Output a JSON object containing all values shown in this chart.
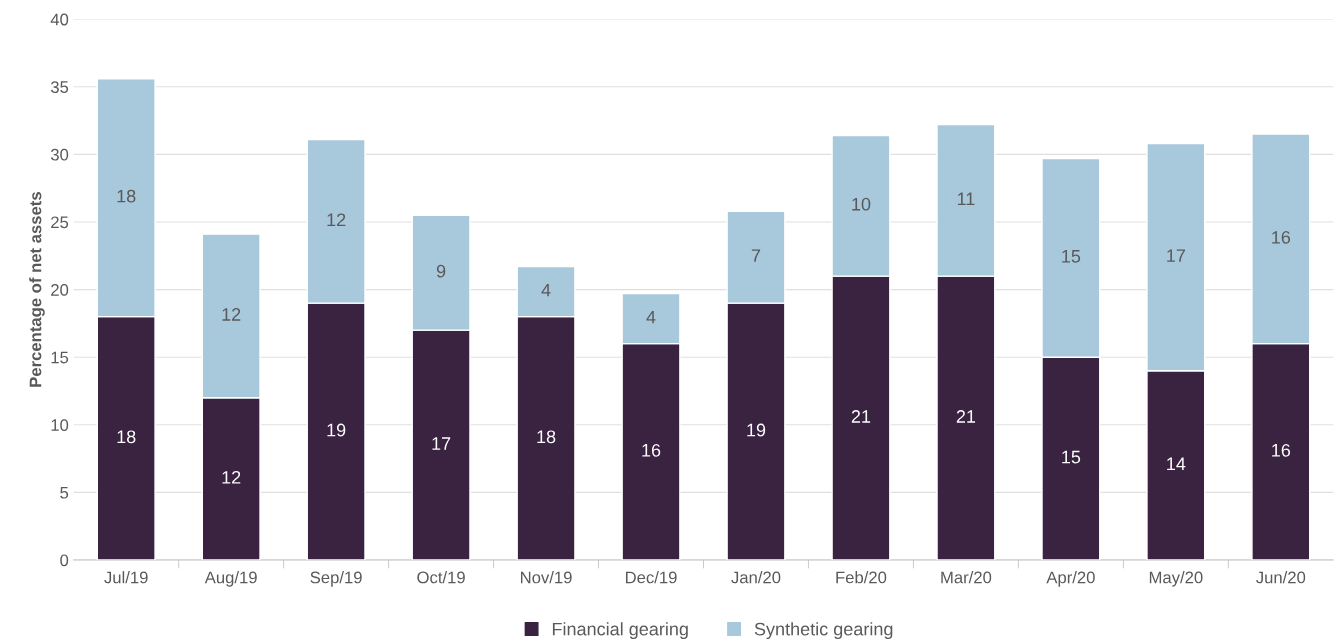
{
  "chart_data": {
    "type": "bar",
    "stacked": true,
    "categories": [
      "Jul/19",
      "Aug/19",
      "Sep/19",
      "Oct/19",
      "Nov/19",
      "Dec/19",
      "Jan/20",
      "Feb/20",
      "Mar/20",
      "Apr/20",
      "May/20",
      "Jun/20"
    ],
    "series": [
      {
        "name": "Financial gearing",
        "color": "#3a2341",
        "values": [
          18,
          12,
          19,
          17,
          18,
          16,
          19,
          21,
          21,
          15,
          14,
          16
        ],
        "value_labels": [
          "18",
          "12",
          "19",
          "17",
          "18",
          "16",
          "19",
          "21",
          "21",
          "15",
          "14",
          "16"
        ]
      },
      {
        "name": "Synthetic gearing",
        "color": "#a8c8dc",
        "values": [
          17.6,
          12.1,
          12.1,
          8.5,
          3.7,
          3.7,
          6.8,
          10.4,
          11.2,
          14.7,
          16.8,
          15.5
        ],
        "value_labels": [
          "18",
          "12",
          "12",
          "9",
          "4",
          "4",
          "7",
          "10",
          "11",
          "15",
          "17",
          "16"
        ]
      }
    ],
    "ylabel": "Percentage of net assets",
    "ylim": [
      0,
      40
    ],
    "yticks": [
      0,
      5,
      10,
      15,
      20,
      25,
      30,
      35,
      40
    ],
    "grid": "y",
    "legend": "bottom",
    "marker": "square"
  }
}
